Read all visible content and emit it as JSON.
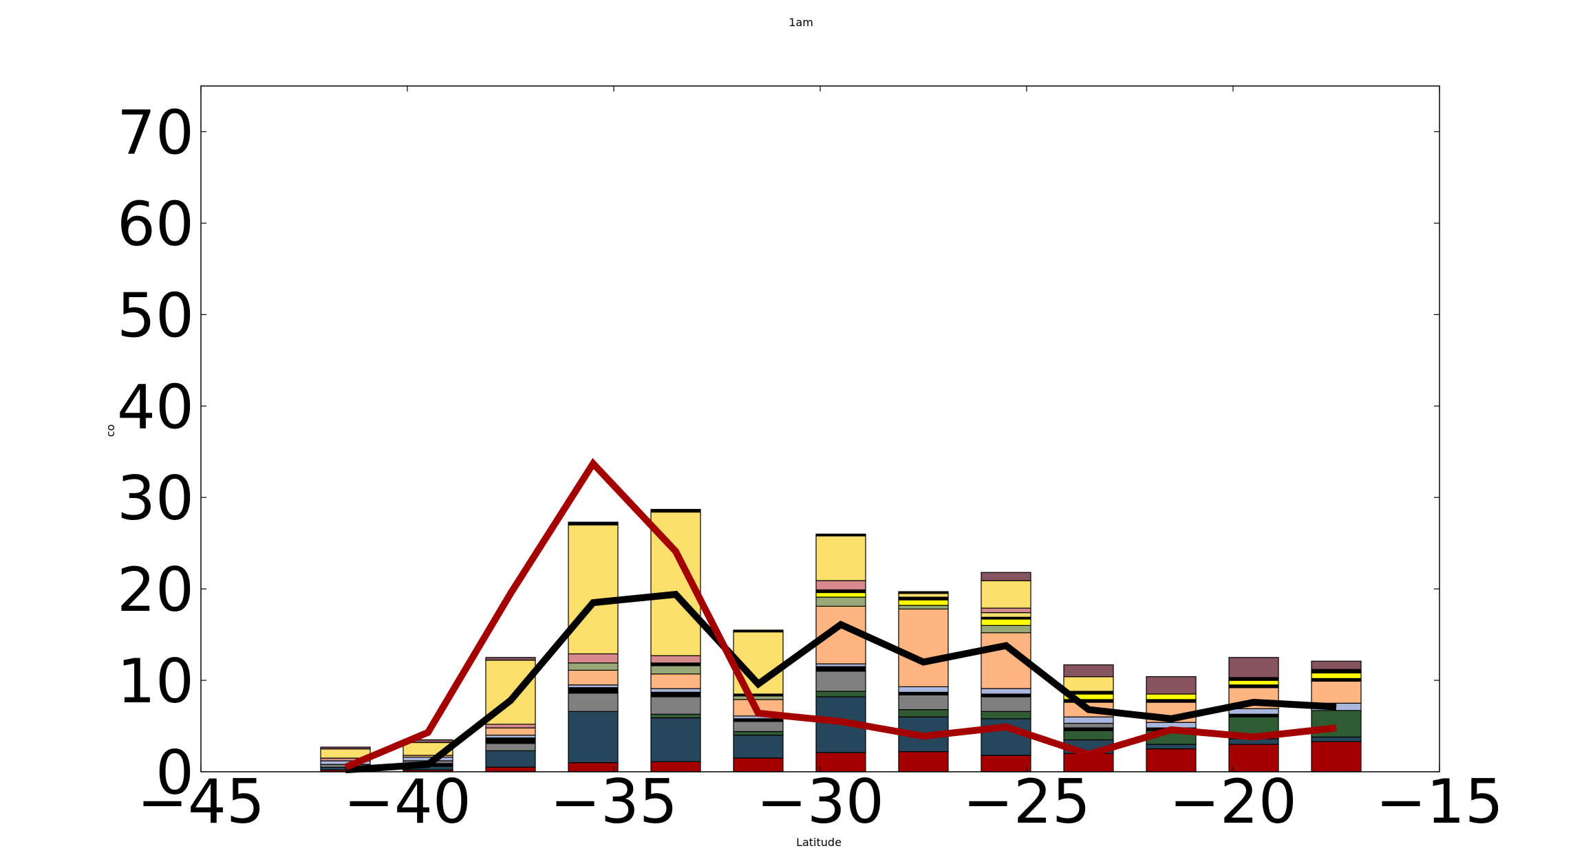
{
  "chart_data": {
    "type": "bar",
    "title": "1am",
    "xlabel": "Latitude",
    "ylabel": "co",
    "xlim": [
      -45,
      -15
    ],
    "ylim": [
      0,
      75
    ],
    "x_ticks": [
      -45,
      -40,
      -35,
      -30,
      -25,
      -20,
      -15
    ],
    "x_tick_labels": [
      "−45",
      "−40",
      "−35",
      "−30",
      "−25",
      "−20",
      "−15"
    ],
    "y_ticks": [
      0,
      10,
      20,
      30,
      40,
      50,
      60,
      70
    ],
    "y_tick_labels": [
      "0",
      "10",
      "20",
      "30",
      "40",
      "50",
      "60",
      "70"
    ],
    "grid": false,
    "legend": "none",
    "bar_width": 1.2,
    "component_colors": {
      "red": "#a50000",
      "navy": "#26465b",
      "green": "#2f5c33",
      "gray": "#808080",
      "black": "#000000",
      "lavender": "#a9b7dd",
      "peach": "#ffb580",
      "sage": "#98a878",
      "pink": "#d68a8e",
      "yellow": "#ffff00",
      "pale_yellow": "#fde06b",
      "plum": "#87535f"
    },
    "stacks": [
      {
        "x": -41.5,
        "segments": [
          {
            "c": "red",
            "v": 0.2
          },
          {
            "c": "navy",
            "v": 0.3
          },
          {
            "c": "gray",
            "v": 0.3
          },
          {
            "c": "lavender",
            "v": 0.4
          },
          {
            "c": "pink",
            "v": 0.3
          },
          {
            "c": "pale_yellow",
            "v": 1.0
          },
          {
            "c": "plum",
            "v": 0.2
          }
        ]
      },
      {
        "x": -39.5,
        "segments": [
          {
            "c": "red",
            "v": 0.2
          },
          {
            "c": "navy",
            "v": 0.4
          },
          {
            "c": "black",
            "v": 0.3
          },
          {
            "c": "gray",
            "v": 0.3
          },
          {
            "c": "lavender",
            "v": 0.4
          },
          {
            "c": "peach",
            "v": 0.2
          },
          {
            "c": "pale_yellow",
            "v": 1.4
          },
          {
            "c": "plum",
            "v": 0.3
          }
        ]
      },
      {
        "x": -37.5,
        "segments": [
          {
            "c": "red",
            "v": 0.5
          },
          {
            "c": "navy",
            "v": 1.8
          },
          {
            "c": "gray",
            "v": 0.8
          },
          {
            "c": "black",
            "v": 0.6
          },
          {
            "c": "lavender",
            "v": 0.3
          },
          {
            "c": "peach",
            "v": 0.8
          },
          {
            "c": "pink",
            "v": 0.4
          },
          {
            "c": "pale_yellow",
            "v": 7.0
          },
          {
            "c": "plum",
            "v": 0.3
          }
        ]
      },
      {
        "x": -35.5,
        "segments": [
          {
            "c": "red",
            "v": 1.0
          },
          {
            "c": "navy",
            "v": 5.6
          },
          {
            "c": "gray",
            "v": 2.0
          },
          {
            "c": "black",
            "v": 0.6
          },
          {
            "c": "lavender",
            "v": 0.3
          },
          {
            "c": "peach",
            "v": 1.6
          },
          {
            "c": "sage",
            "v": 0.8
          },
          {
            "c": "pink",
            "v": 1.0
          },
          {
            "c": "pale_yellow",
            "v": 14.1
          },
          {
            "c": "black",
            "v": 0.3
          }
        ]
      },
      {
        "x": -33.5,
        "segments": [
          {
            "c": "red",
            "v": 1.1
          },
          {
            "c": "navy",
            "v": 4.8
          },
          {
            "c": "green",
            "v": 0.4
          },
          {
            "c": "gray",
            "v": 1.9
          },
          {
            "c": "black",
            "v": 0.5
          },
          {
            "c": "lavender",
            "v": 0.4
          },
          {
            "c": "peach",
            "v": 1.6
          },
          {
            "c": "sage",
            "v": 0.9
          },
          {
            "c": "black",
            "v": 0.3
          },
          {
            "c": "pink",
            "v": 0.8
          },
          {
            "c": "pale_yellow",
            "v": 15.7
          },
          {
            "c": "black",
            "v": 0.3
          }
        ]
      },
      {
        "x": -31.5,
        "segments": [
          {
            "c": "red",
            "v": 1.5
          },
          {
            "c": "navy",
            "v": 2.5
          },
          {
            "c": "green",
            "v": 0.4
          },
          {
            "c": "gray",
            "v": 1.1
          },
          {
            "c": "black",
            "v": 0.3
          },
          {
            "c": "lavender",
            "v": 0.3
          },
          {
            "c": "peach",
            "v": 1.8
          },
          {
            "c": "sage",
            "v": 0.4
          },
          {
            "c": "black",
            "v": 0.2
          },
          {
            "c": "pale_yellow",
            "v": 6.8
          },
          {
            "c": "black",
            "v": 0.2
          }
        ]
      },
      {
        "x": -29.5,
        "segments": [
          {
            "c": "red",
            "v": 2.1
          },
          {
            "c": "navy",
            "v": 6.1
          },
          {
            "c": "green",
            "v": 0.6
          },
          {
            "c": "gray",
            "v": 2.2
          },
          {
            "c": "black",
            "v": 0.5
          },
          {
            "c": "lavender",
            "v": 0.3
          },
          {
            "c": "peach",
            "v": 6.3
          },
          {
            "c": "sage",
            "v": 1.0
          },
          {
            "c": "yellow",
            "v": 0.5
          },
          {
            "c": "black",
            "v": 0.3
          },
          {
            "c": "pink",
            "v": 1.0
          },
          {
            "c": "pale_yellow",
            "v": 4.9
          },
          {
            "c": "black",
            "v": 0.2
          }
        ]
      },
      {
        "x": -27.5,
        "segments": [
          {
            "c": "red",
            "v": 2.2
          },
          {
            "c": "navy",
            "v": 3.8
          },
          {
            "c": "green",
            "v": 0.8
          },
          {
            "c": "gray",
            "v": 1.6
          },
          {
            "c": "black",
            "v": 0.3
          },
          {
            "c": "lavender",
            "v": 0.6
          },
          {
            "c": "peach",
            "v": 8.5
          },
          {
            "c": "sage",
            "v": 0.4
          },
          {
            "c": "yellow",
            "v": 0.6
          },
          {
            "c": "black",
            "v": 0.3
          },
          {
            "c": "pale_yellow",
            "v": 0.4
          },
          {
            "c": "black",
            "v": 0.2
          }
        ]
      },
      {
        "x": -25.5,
        "segments": [
          {
            "c": "red",
            "v": 1.8
          },
          {
            "c": "navy",
            "v": 4.0
          },
          {
            "c": "green",
            "v": 0.8
          },
          {
            "c": "gray",
            "v": 1.6
          },
          {
            "c": "black",
            "v": 0.3
          },
          {
            "c": "lavender",
            "v": 0.6
          },
          {
            "c": "peach",
            "v": 6.1
          },
          {
            "c": "sage",
            "v": 0.8
          },
          {
            "c": "yellow",
            "v": 0.7
          },
          {
            "c": "black",
            "v": 0.2
          },
          {
            "c": "pale_yellow",
            "v": 0.5
          },
          {
            "c": "pink",
            "v": 0.5
          },
          {
            "c": "pale_yellow",
            "v": 3.0
          },
          {
            "c": "plum",
            "v": 0.9
          }
        ]
      },
      {
        "x": -23.5,
        "segments": [
          {
            "c": "red",
            "v": 2.0
          },
          {
            "c": "navy",
            "v": 1.5
          },
          {
            "c": "green",
            "v": 1.0
          },
          {
            "c": "black",
            "v": 0.3
          },
          {
            "c": "gray",
            "v": 0.5
          },
          {
            "c": "lavender",
            "v": 0.7
          },
          {
            "c": "peach",
            "v": 1.6
          },
          {
            "c": "black",
            "v": 0.3
          },
          {
            "c": "yellow",
            "v": 0.6
          },
          {
            "c": "black",
            "v": 0.3
          },
          {
            "c": "pale_yellow",
            "v": 1.6
          },
          {
            "c": "plum",
            "v": 1.3
          }
        ]
      },
      {
        "x": -21.5,
        "segments": [
          {
            "c": "red",
            "v": 2.5
          },
          {
            "c": "navy",
            "v": 0.5
          },
          {
            "c": "green",
            "v": 1.5
          },
          {
            "c": "black",
            "v": 0.3
          },
          {
            "c": "lavender",
            "v": 0.6
          },
          {
            "c": "peach",
            "v": 2.2
          },
          {
            "c": "black",
            "v": 0.3
          },
          {
            "c": "yellow",
            "v": 0.6
          },
          {
            "c": "plum",
            "v": 1.9
          }
        ]
      },
      {
        "x": -19.5,
        "segments": [
          {
            "c": "red",
            "v": 3.0
          },
          {
            "c": "navy",
            "v": 0.6
          },
          {
            "c": "green",
            "v": 2.4
          },
          {
            "c": "black",
            "v": 0.3
          },
          {
            "c": "lavender",
            "v": 0.6
          },
          {
            "c": "peach",
            "v": 2.3
          },
          {
            "c": "black",
            "v": 0.3
          },
          {
            "c": "yellow",
            "v": 0.5
          },
          {
            "c": "black",
            "v": 0.3
          },
          {
            "c": "plum",
            "v": 2.2
          }
        ]
      },
      {
        "x": -17.5,
        "segments": [
          {
            "c": "red",
            "v": 3.3
          },
          {
            "c": "navy",
            "v": 0.5
          },
          {
            "c": "green",
            "v": 2.9
          },
          {
            "c": "lavender",
            "v": 0.8
          },
          {
            "c": "peach",
            "v": 2.4
          },
          {
            "c": "black",
            "v": 0.3
          },
          {
            "c": "yellow",
            "v": 0.6
          },
          {
            "c": "black",
            "v": 0.4
          },
          {
            "c": "plum",
            "v": 0.9
          }
        ]
      }
    ],
    "series": [
      {
        "color": "#000000",
        "line_width": 10,
        "x": [
          -41.5,
          -39.5,
          -37.5,
          -35.5,
          -33.5,
          -31.5,
          -29.5,
          -27.5,
          -25.5,
          -23.5,
          -21.5,
          -19.5,
          -17.5
        ],
        "y": [
          0.2,
          0.8,
          7.8,
          18.5,
          19.4,
          9.6,
          16.1,
          12.0,
          13.8,
          6.8,
          5.8,
          7.6,
          7.1
        ]
      },
      {
        "color": "#a50000",
        "line_width": 10,
        "x": [
          -41.5,
          -39.5,
          -37.5,
          -35.5,
          -33.5,
          -31.5,
          -29.5,
          -27.5,
          -25.5,
          -23.5,
          -21.5,
          -19.5,
          -17.5
        ],
        "y": [
          0.5,
          4.3,
          19.5,
          33.7,
          24.1,
          6.4,
          5.5,
          3.9,
          4.9,
          1.9,
          4.6,
          3.8,
          4.8
        ]
      }
    ]
  }
}
